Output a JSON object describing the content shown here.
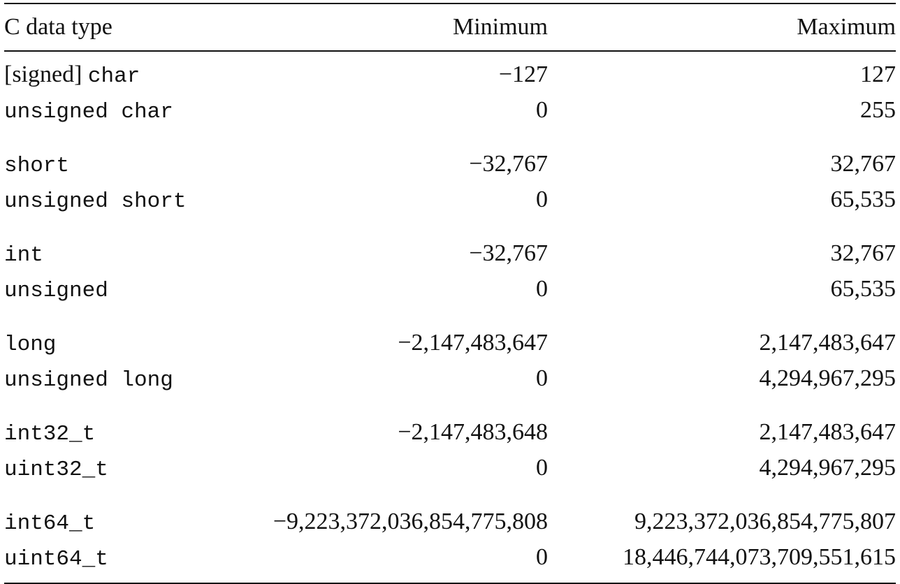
{
  "table": {
    "headers": {
      "type": "C data type",
      "min": "Minimum",
      "max": "Maximum"
    },
    "groups": [
      [
        {
          "type_prefix": "[signed]",
          "type_code": "char",
          "min": "−127",
          "max": "127"
        },
        {
          "type_prefix": "",
          "type_code": "unsigned char",
          "min": "0",
          "max": "255"
        }
      ],
      [
        {
          "type_prefix": "",
          "type_code": "short",
          "min": "−32,767",
          "max": "32,767"
        },
        {
          "type_prefix": "",
          "type_code": "unsigned short",
          "min": "0",
          "max": "65,535"
        }
      ],
      [
        {
          "type_prefix": "",
          "type_code": "int",
          "min": "−32,767",
          "max": "32,767"
        },
        {
          "type_prefix": "",
          "type_code": "unsigned",
          "min": "0",
          "max": "65,535"
        }
      ],
      [
        {
          "type_prefix": "",
          "type_code": "long",
          "min": "−2,147,483,647",
          "max": "2,147,483,647"
        },
        {
          "type_prefix": "",
          "type_code": "unsigned long",
          "min": "0",
          "max": "4,294,967,295"
        }
      ],
      [
        {
          "type_prefix": "",
          "type_code": "int32_t",
          "min": "−2,147,483,648",
          "max": "2,147,483,647"
        },
        {
          "type_prefix": "",
          "type_code": "uint32_t",
          "min": "0",
          "max": "4,294,967,295"
        }
      ],
      [
        {
          "type_prefix": "",
          "type_code": "int64_t",
          "min": "−9,223,372,036,854,775,808",
          "max": "9,223,372,036,854,775,807"
        },
        {
          "type_prefix": "",
          "type_code": "uint64_t",
          "min": "0",
          "max": "18,446,744,073,709,551,615"
        }
      ]
    ]
  }
}
